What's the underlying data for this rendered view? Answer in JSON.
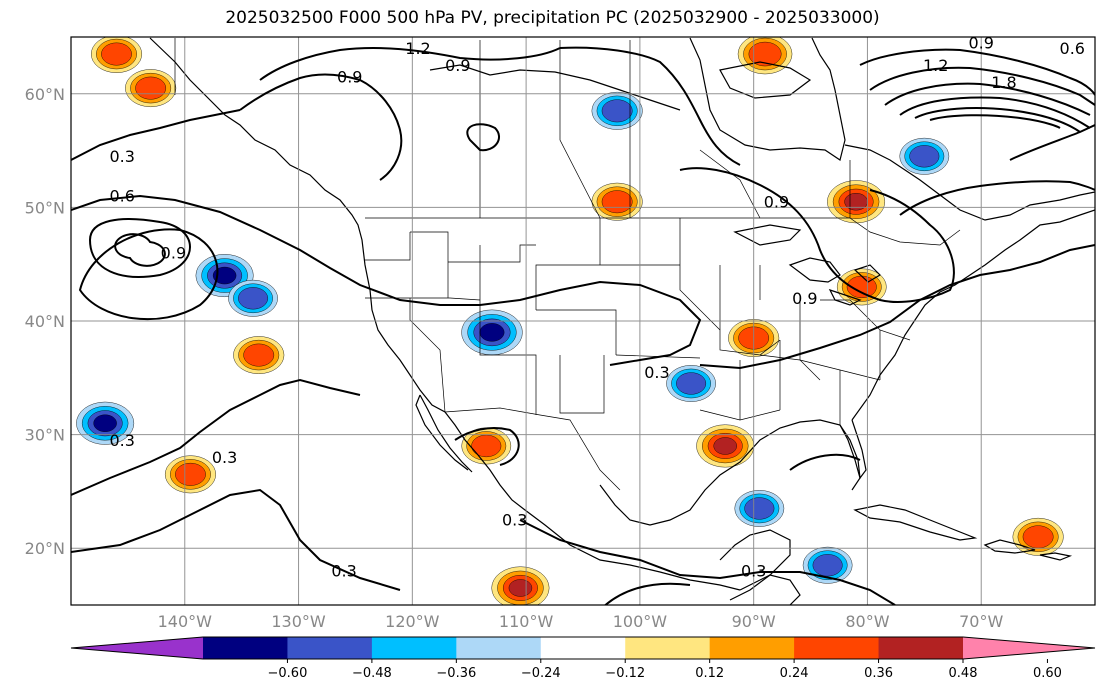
{
  "title": "2025032500 F000 500 hPa PV, precipitation PC (2025032900 - 2025033000)",
  "map": {
    "lon_range": [
      -150,
      -60
    ],
    "lat_range": [
      15,
      65
    ],
    "lat_labels": [
      {
        "lat": 60,
        "text": "60°N"
      },
      {
        "lat": 50,
        "text": "50°N"
      },
      {
        "lat": 40,
        "text": "40°N"
      },
      {
        "lat": 30,
        "text": "30°N"
      },
      {
        "lat": 20,
        "text": "20°N"
      }
    ],
    "lon_labels": [
      {
        "lon": -140,
        "text": "140°W"
      },
      {
        "lon": -130,
        "text": "130°W"
      },
      {
        "lon": -120,
        "text": "120°W"
      },
      {
        "lon": -110,
        "text": "110°W"
      },
      {
        "lon": -100,
        "text": "100°W"
      },
      {
        "lon": -90,
        "text": "90°W"
      },
      {
        "lon": -80,
        "text": "80°W"
      },
      {
        "lon": -70,
        "text": "70°W"
      }
    ],
    "grid_lats": [
      20,
      30,
      40,
      50,
      60
    ],
    "grid_lons": [
      -140,
      -130,
      -120,
      -110,
      -100,
      -90,
      -80,
      -70
    ],
    "contour_labels": [
      {
        "text": "1.2",
        "lon": -119.5,
        "lat": 63.5
      },
      {
        "text": "0.9",
        "lon": -116,
        "lat": 62
      },
      {
        "text": "0.9",
        "lon": -125.5,
        "lat": 61
      },
      {
        "text": "0.3",
        "lon": -145.5,
        "lat": 54
      },
      {
        "text": "0.6",
        "lon": -145.5,
        "lat": 50.5
      },
      {
        "text": "0.9",
        "lon": -141,
        "lat": 45.5
      },
      {
        "text": "0.9",
        "lon": -88,
        "lat": 50
      },
      {
        "text": "0.9",
        "lon": -85.5,
        "lat": 41.5
      },
      {
        "text": "0.3",
        "lon": -98.5,
        "lat": 35
      },
      {
        "text": "0.3",
        "lon": -145.5,
        "lat": 29
      },
      {
        "text": "0.3",
        "lon": -136.5,
        "lat": 27.5
      },
      {
        "text": "0.3",
        "lon": -111,
        "lat": 22
      },
      {
        "text": "0.3",
        "lon": -90,
        "lat": 17.5
      },
      {
        "text": "0.3",
        "lon": -126,
        "lat": 17.5
      },
      {
        "text": "0.9",
        "lon": -70,
        "lat": 64
      },
      {
        "text": "0.6",
        "lon": -62,
        "lat": 63.5
      },
      {
        "text": "1.2",
        "lon": -74,
        "lat": 62
      },
      {
        "text": "1.8",
        "lon": -68,
        "lat": 60.5
      }
    ]
  },
  "colorbar": {
    "ticks": [
      "−0.60",
      "−0.48",
      "−0.36",
      "−0.24",
      "−0.12",
      "0.12",
      "0.24",
      "0.36",
      "0.48",
      "0.60"
    ],
    "bin_colors": [
      "#000080",
      "#3a54c8",
      "#00bfff",
      "#add8f7",
      "#ffffff",
      "#ffe680",
      "#ff9e00",
      "#ff4500",
      "#b22222"
    ],
    "under_color": "#9932cc",
    "over_color": "#ff82ab"
  },
  "precip_anomalies": [
    {
      "lon": -113,
      "lat": 39,
      "v": -0.55
    },
    {
      "lon": -102,
      "lat": 58.5,
      "v": -0.4
    },
    {
      "lon": -136.5,
      "lat": 44,
      "v": -0.5
    },
    {
      "lon": -134,
      "lat": 42,
      "v": -0.38
    },
    {
      "lon": -89.5,
      "lat": 23.5,
      "v": -0.38
    },
    {
      "lon": -95.5,
      "lat": 34.5,
      "v": -0.38
    },
    {
      "lon": -75,
      "lat": 54.5,
      "v": -0.38
    },
    {
      "lon": -147,
      "lat": 31,
      "v": -0.5
    },
    {
      "lon": -83.5,
      "lat": 18.5,
      "v": -0.38
    },
    {
      "lon": -90,
      "lat": 38.5,
      "v": 0.4
    },
    {
      "lon": -92.5,
      "lat": 29,
      "v": 0.5
    },
    {
      "lon": -81,
      "lat": 50.5,
      "v": 0.5
    },
    {
      "lon": -110.5,
      "lat": 16.5,
      "v": 0.5
    },
    {
      "lon": -102,
      "lat": 50.5,
      "v": 0.4
    },
    {
      "lon": -133.5,
      "lat": 37,
      "v": 0.4
    },
    {
      "lon": -89,
      "lat": 63.5,
      "v": 0.45
    },
    {
      "lon": -143,
      "lat": 60.5,
      "v": 0.4
    },
    {
      "lon": -146,
      "lat": 63.5,
      "v": 0.4
    },
    {
      "lon": -65,
      "lat": 21,
      "v": 0.4
    },
    {
      "lon": -139.5,
      "lat": 26.5,
      "v": 0.4
    },
    {
      "lon": -80.5,
      "lat": 43,
      "v": 0.38
    },
    {
      "lon": -113.5,
      "lat": 29,
      "v": 0.38
    }
  ]
}
